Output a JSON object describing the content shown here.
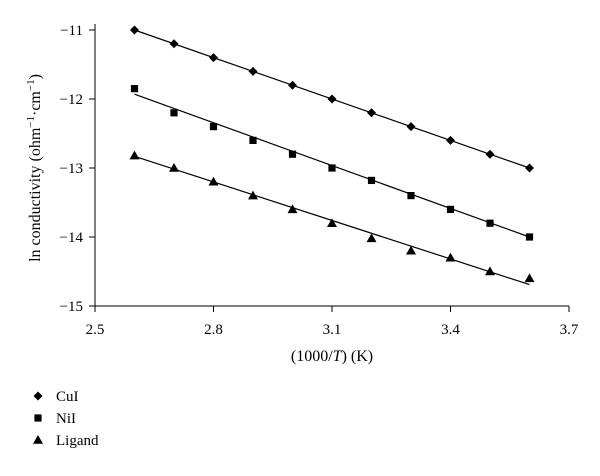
{
  "chart_data": {
    "type": "scatter",
    "xlabel_parts": [
      "(1000/",
      "T",
      ") (K)"
    ],
    "ylabel_parts": [
      "ln conductivity (ohm",
      "−1",
      "·cm",
      "−1",
      ")"
    ],
    "xlim": [
      2.5,
      3.7
    ],
    "ylim": [
      -15,
      -11
    ],
    "xticks": [
      2.5,
      2.8,
      3.1,
      3.4,
      3.7
    ],
    "xtick_labels": [
      "2.5",
      "2.8",
      "3.1",
      "3.4",
      "3.7"
    ],
    "yticks": [
      -11,
      -12,
      -13,
      -14,
      -15
    ],
    "ytick_labels": [
      "−11",
      "−12",
      "−13",
      "−14",
      "−15"
    ],
    "grid": false,
    "legend_position": "bottom-left",
    "series": [
      {
        "name": "CuI",
        "marker": "diamond",
        "x": [
          2.6,
          2.7,
          2.8,
          2.9,
          3.0,
          3.1,
          3.2,
          3.3,
          3.4,
          3.5,
          3.6
        ],
        "y": [
          -11.0,
          -11.2,
          -11.4,
          -11.6,
          -11.8,
          -12.0,
          -12.2,
          -12.4,
          -12.6,
          -12.8,
          -13.0
        ],
        "fit": [
          [
            2.6,
            -11.0
          ],
          [
            3.6,
            -13.0
          ]
        ]
      },
      {
        "name": "NiI",
        "marker": "square",
        "x": [
          2.6,
          2.7,
          2.8,
          2.9,
          3.0,
          3.1,
          3.2,
          3.3,
          3.4,
          3.5,
          3.6
        ],
        "y": [
          -11.85,
          -12.2,
          -12.4,
          -12.6,
          -12.8,
          -13.0,
          -13.18,
          -13.4,
          -13.6,
          -13.8,
          -14.0
        ],
        "fit": [
          [
            2.6,
            -11.93
          ],
          [
            3.6,
            -14.0
          ]
        ]
      },
      {
        "name": "Ligand",
        "marker": "triangle",
        "x": [
          2.6,
          2.7,
          2.8,
          2.9,
          3.0,
          3.1,
          3.2,
          3.3,
          3.4,
          3.5,
          3.6
        ],
        "y": [
          -12.82,
          -13.0,
          -13.2,
          -13.4,
          -13.6,
          -13.8,
          -14.02,
          -14.2,
          -14.3,
          -14.5,
          -14.6
        ],
        "fit": [
          [
            2.6,
            -12.83
          ],
          [
            3.6,
            -14.69
          ]
        ]
      }
    ]
  },
  "colors": {
    "marker": "#000000",
    "line": "#000000",
    "axis": "#000000"
  }
}
